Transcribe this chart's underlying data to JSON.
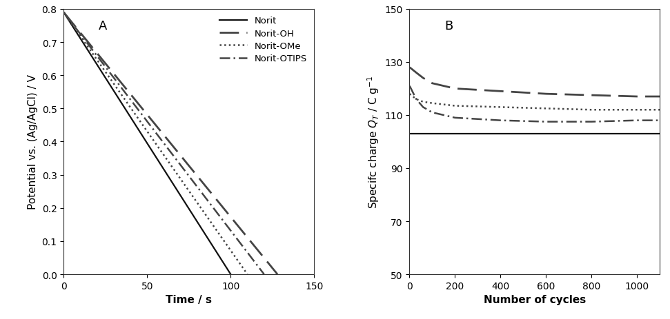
{
  "panel_A": {
    "label": "A",
    "xlabel": "Time / s",
    "ylabel": "Potential vs. (Ag/AgCl) / V",
    "xlim": [
      0,
      150
    ],
    "ylim": [
      0,
      0.8
    ],
    "xticks": [
      0,
      50,
      100,
      150
    ],
    "yticks": [
      0,
      0.1,
      0.2,
      0.3,
      0.4,
      0.5,
      0.6,
      0.7,
      0.8
    ],
    "series": [
      {
        "name": "Norit",
        "x": [
          0,
          100
        ],
        "y": [
          0.79,
          0.0
        ],
        "linestyle": "solid",
        "color": "#111111",
        "linewidth": 1.6
      },
      {
        "name": "Norit-OH",
        "x": [
          0,
          128
        ],
        "y": [
          0.79,
          0.0
        ],
        "linestyle": "dashed",
        "color": "#444444",
        "linewidth": 2.0,
        "dashes": [
          10,
          4
        ]
      },
      {
        "name": "Norit-OMe",
        "x": [
          0,
          110
        ],
        "y": [
          0.79,
          0.0
        ],
        "linestyle": "dotted",
        "color": "#444444",
        "linewidth": 1.8
      },
      {
        "name": "Norit-OTIPS",
        "x": [
          0,
          120
        ],
        "y": [
          0.79,
          0.0
        ],
        "linestyle": "dashdot",
        "color": "#444444",
        "linewidth": 1.8,
        "dashes": [
          6,
          2,
          1,
          2
        ]
      }
    ]
  },
  "panel_B": {
    "label": "B",
    "xlabel": "Number of cycles",
    "ylabel": "Specifc charge Q_T / C g^-1",
    "xlim": [
      0,
      1100
    ],
    "ylim": [
      50,
      150
    ],
    "xticks": [
      0,
      200,
      400,
      600,
      800,
      1000
    ],
    "yticks": [
      50,
      70,
      90,
      110,
      130,
      150
    ],
    "series": [
      {
        "name": "Norit",
        "x": [
          1,
          1100
        ],
        "y": [
          103,
          103
        ],
        "linestyle": "solid",
        "color": "#111111",
        "linewidth": 1.6
      },
      {
        "name": "Norit-OH",
        "x": [
          1,
          30,
          60,
          100,
          200,
          400,
          600,
          800,
          1000,
          1100
        ],
        "y": [
          128,
          126,
          124,
          122,
          120,
          119,
          118,
          117.5,
          117,
          117
        ],
        "linestyle": "dashed",
        "color": "#444444",
        "linewidth": 2.0,
        "dashes": [
          10,
          4
        ]
      },
      {
        "name": "Norit-OMe",
        "x": [
          1,
          30,
          60,
          100,
          200,
          400,
          600,
          800,
          1000,
          1100
        ],
        "y": [
          118,
          116,
          115,
          114.5,
          113.5,
          113,
          112.5,
          112,
          112,
          112
        ],
        "linestyle": "dotted",
        "color": "#444444",
        "linewidth": 1.8
      },
      {
        "name": "Norit-OTIPS",
        "x": [
          1,
          30,
          60,
          100,
          200,
          400,
          600,
          800,
          1000,
          1100
        ],
        "y": [
          121,
          116,
          113,
          111,
          109,
          108,
          107.5,
          107.5,
          108,
          108
        ],
        "linestyle": "dashdot",
        "color": "#444444",
        "linewidth": 1.8,
        "dashes": [
          6,
          2,
          1,
          2
        ]
      }
    ]
  },
  "background_color": "#ffffff",
  "label_fontsize": 11,
  "tick_fontsize": 10,
  "panel_label_fontsize": 13,
  "legend_fontsize": 9.5
}
